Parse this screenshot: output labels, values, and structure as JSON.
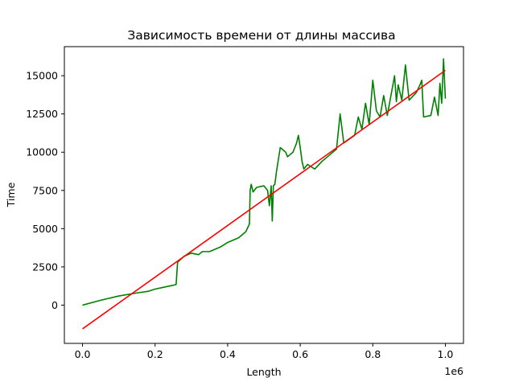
{
  "chart_data": {
    "type": "line",
    "title": "Зависимость времени от длины массива",
    "xlabel": "Length",
    "ylabel": "Time",
    "x_scale_label": "1e6",
    "xlim": [
      -0.05,
      1.05
    ],
    "ylim": [
      -2500,
      16900
    ],
    "x_ticks": [
      0.0,
      0.2,
      0.4,
      0.6,
      0.8,
      1.0
    ],
    "x_tick_labels": [
      "0.0",
      "0.2",
      "0.4",
      "0.6",
      "0.8",
      "1.0"
    ],
    "y_ticks": [
      0,
      2500,
      5000,
      7500,
      10000,
      12500,
      15000
    ],
    "y_tick_labels": [
      "0",
      "2500",
      "5000",
      "7500",
      "10000",
      "12500",
      "15000"
    ],
    "grid": false,
    "series": [
      {
        "color": "#008000",
        "x": [
          0.0,
          0.05,
          0.1,
          0.15,
          0.18,
          0.2,
          0.22,
          0.25,
          0.258,
          0.262,
          0.28,
          0.3,
          0.32,
          0.33,
          0.35,
          0.38,
          0.4,
          0.43,
          0.45,
          0.46,
          0.462,
          0.465,
          0.47,
          0.48,
          0.5,
          0.51,
          0.515,
          0.52,
          0.523,
          0.526,
          0.53,
          0.535,
          0.545,
          0.56,
          0.565,
          0.58,
          0.59,
          0.595,
          0.6,
          0.605,
          0.61,
          0.62,
          0.64,
          0.66,
          0.68,
          0.7,
          0.71,
          0.72,
          0.75,
          0.76,
          0.77,
          0.78,
          0.79,
          0.8,
          0.81,
          0.82,
          0.83,
          0.84,
          0.86,
          0.865,
          0.87,
          0.88,
          0.89,
          0.9,
          0.92,
          0.93,
          0.935,
          0.94,
          0.96,
          0.97,
          0.98,
          0.985,
          0.99,
          0.995,
          1.0
        ],
        "y": [
          0,
          320,
          600,
          800,
          900,
          1050,
          1150,
          1300,
          1350,
          2800,
          3200,
          3400,
          3300,
          3500,
          3500,
          3800,
          4100,
          4400,
          4800,
          5300,
          7500,
          7900,
          7400,
          7700,
          7800,
          7500,
          6500,
          7800,
          5500,
          7800,
          7900,
          8800,
          10300,
          10000,
          9700,
          10000,
          10600,
          11100,
          10300,
          9400,
          8900,
          9200,
          8900,
          9400,
          9800,
          10200,
          12500,
          10600,
          11100,
          12300,
          11500,
          13200,
          11800,
          14700,
          12700,
          12300,
          13700,
          12400,
          15000,
          13300,
          14400,
          13400,
          15700,
          13400,
          13900,
          14400,
          14700,
          12300,
          12400,
          13600,
          12400,
          14500,
          13200,
          16100,
          13500
        ]
      },
      {
        "color": "#ff0000",
        "x": [
          0.0,
          1.0
        ],
        "y": [
          -1550,
          15350
        ]
      }
    ]
  }
}
